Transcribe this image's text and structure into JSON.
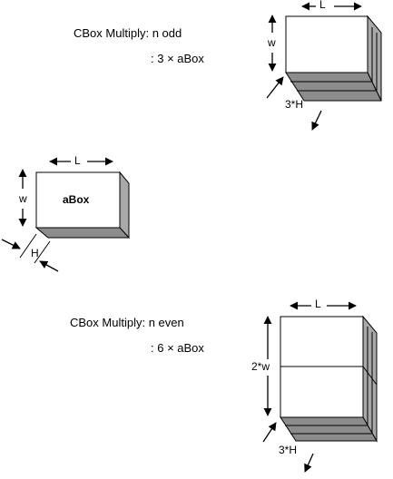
{
  "caption_odd": {
    "title": "CBox Multiply: n odd",
    "formula": ": 3 × aBox"
  },
  "caption_even": {
    "title": "CBox Multiply: n even",
    "formula": ": 6 × aBox"
  },
  "box_odd": {
    "length_label": "L",
    "width_label": "w",
    "height_label": "3*H"
  },
  "box_single": {
    "name": "aBox",
    "length_label": "L",
    "width_label": "w",
    "height_label": "H"
  },
  "box_even": {
    "length_label": "L",
    "width_label": "2*w",
    "height_label": "3*H"
  },
  "colors": {
    "side_face": "#a9a9a9",
    "bottom_face": "#8c8c8c",
    "edge": "#000000",
    "front_face": "#ffffff"
  }
}
